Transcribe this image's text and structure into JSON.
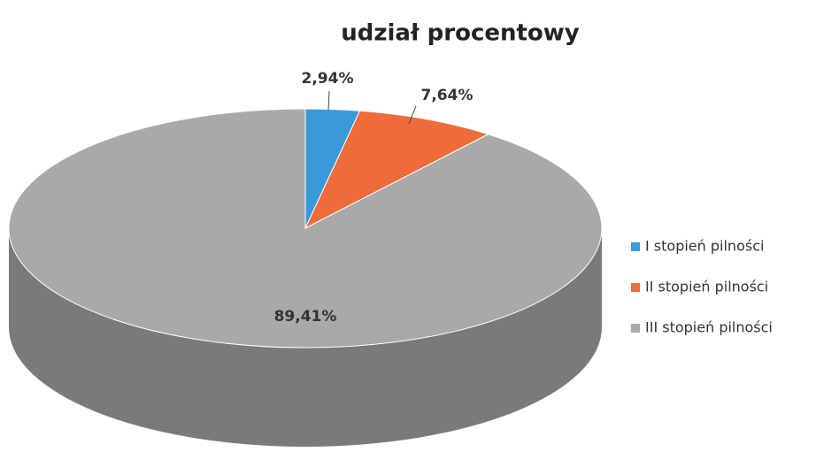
{
  "chart_data": {
    "type": "pie",
    "title": "udział procentowy",
    "categories": [
      "I stopień pilności",
      "II stopień pilności",
      "III stopień pilności"
    ],
    "values": [
      2.94,
      7.64,
      89.41
    ],
    "value_labels": [
      "2,94%",
      "7,64%",
      "89,41%"
    ],
    "colors": [
      "#3a9ad9",
      "#ed6c3a",
      "#a9a9a9"
    ],
    "legend": "right"
  }
}
